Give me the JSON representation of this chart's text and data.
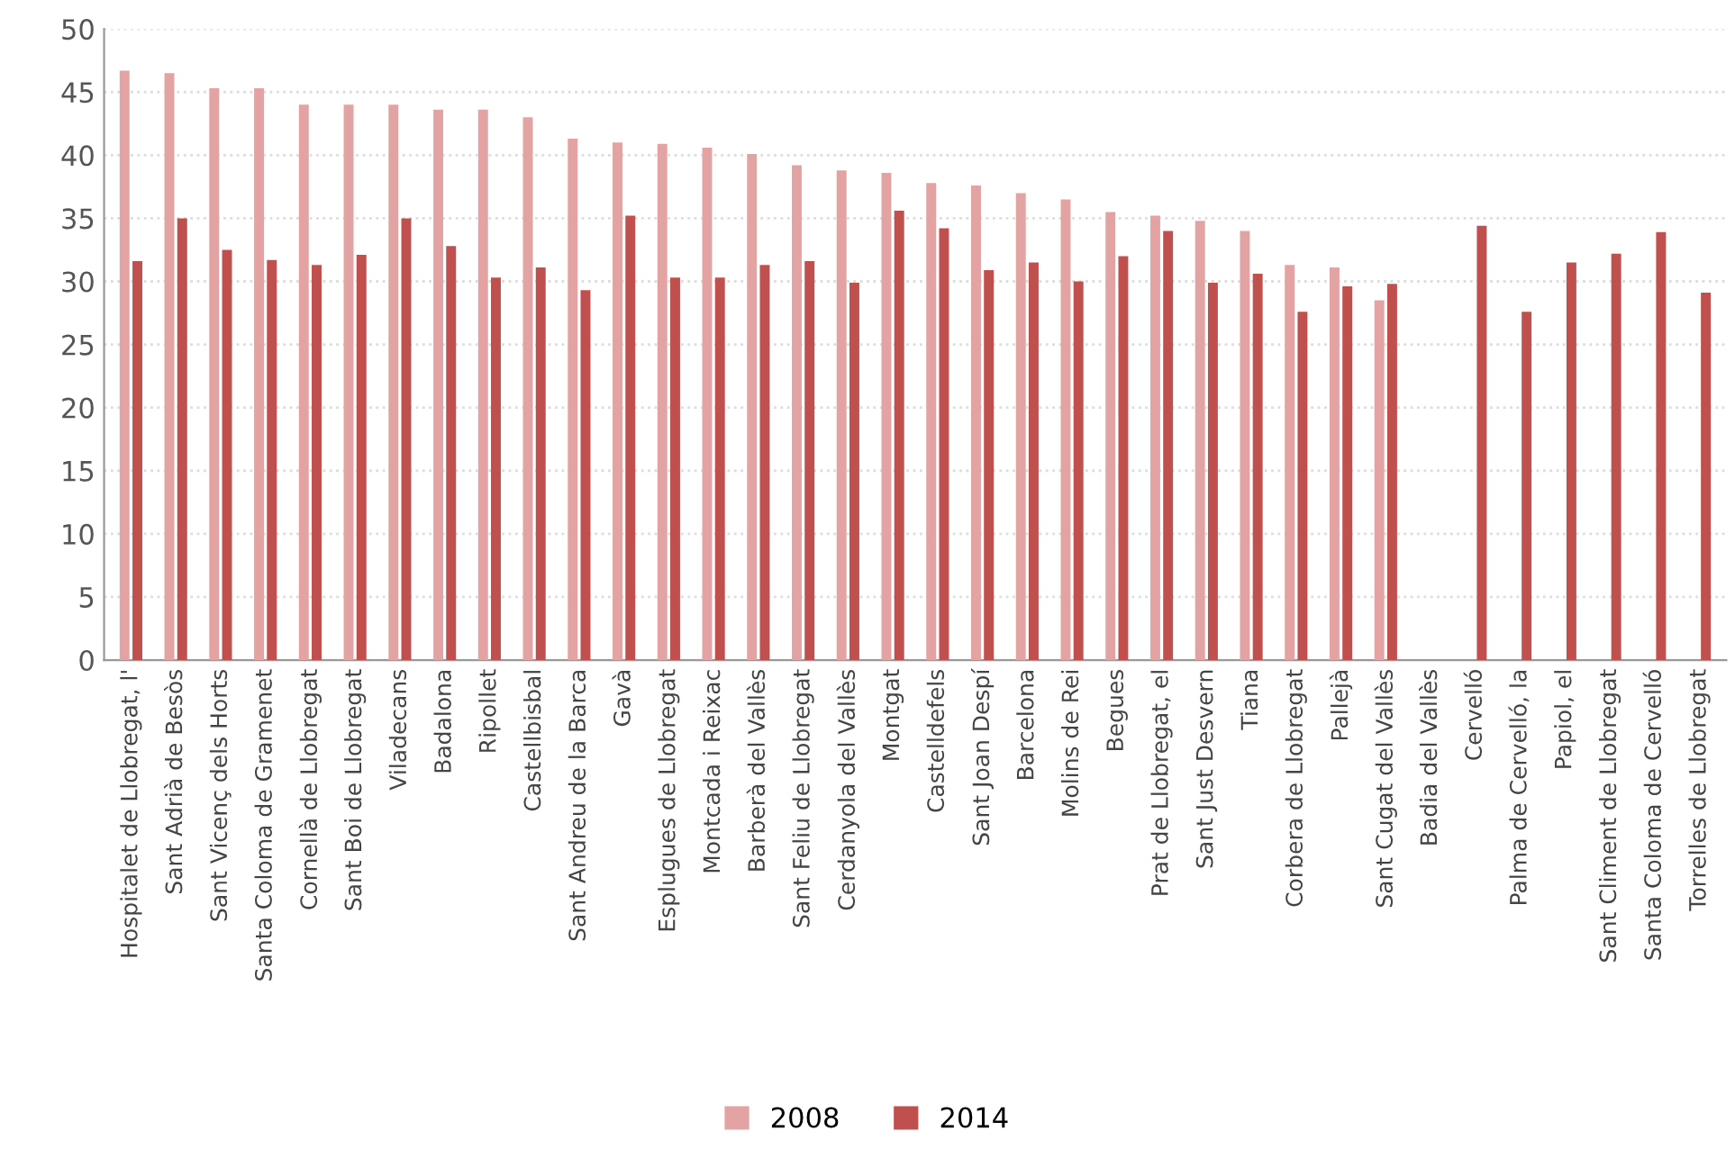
{
  "chart_data": {
    "type": "bar",
    "categories": [
      "Hospitalet de Llobregat, l'",
      "Sant Adrià de Besòs",
      "Sant Vicenç dels Horts",
      "Santa Coloma de Gramenet",
      "Cornellà de Llobregat",
      "Sant Boi de Llobregat",
      "Viladecans",
      "Badalona",
      "Ripollet",
      "Castellbisbal",
      "Sant Andreu de la Barca",
      "Gavà",
      "Esplugues de Llobregat",
      "Montcada i Reixac",
      "Barberà del Vallès",
      "Sant Feliu de Llobregat",
      "Cerdanyola del Vallès",
      "Montgat",
      "Castelldefels",
      "Sant Joan Despí",
      "Barcelona",
      "Molins de Rei",
      "Begues",
      "Prat de Llobregat, el",
      "Sant Just Desvern",
      "Tiana",
      "Corbera de Llobregat",
      "Pallejà",
      "Sant Cugat del Vallès",
      "Badia del Vallès",
      "Cervelló",
      "Palma de Cervelló, la",
      "Papiol, el",
      "Sant Climent de Llobregat",
      "Santa Coloma de Cervelló",
      "Torrelles de Llobregat"
    ],
    "series": [
      {
        "name": "2008",
        "color": "#e3a3a2",
        "values": [
          46.7,
          46.5,
          45.3,
          45.3,
          44.0,
          44.0,
          44.0,
          43.6,
          43.6,
          43.0,
          41.3,
          41.0,
          40.9,
          40.6,
          40.1,
          39.2,
          38.8,
          38.6,
          37.8,
          37.6,
          37.0,
          36.5,
          35.5,
          35.2,
          34.8,
          34.0,
          31.3,
          31.1,
          28.5,
          null,
          null,
          null,
          null,
          null,
          null,
          null
        ]
      },
      {
        "name": "2014",
        "color": "#c0504d",
        "values": [
          31.6,
          35.0,
          32.5,
          31.7,
          31.3,
          32.1,
          35.0,
          32.8,
          30.3,
          31.1,
          29.3,
          35.2,
          30.3,
          30.3,
          31.3,
          31.6,
          29.9,
          35.6,
          34.2,
          30.9,
          31.5,
          30.0,
          32.0,
          34.0,
          29.9,
          30.6,
          27.6,
          29.6,
          29.8,
          null,
          34.4,
          27.6,
          31.5,
          32.2,
          33.9,
          29.1
        ]
      }
    ],
    "ylim": [
      0,
      50
    ],
    "yticks": [
      0,
      5,
      10,
      15,
      20,
      25,
      30,
      35,
      40,
      45,
      50
    ],
    "grid": "y",
    "legend": "bottom"
  }
}
